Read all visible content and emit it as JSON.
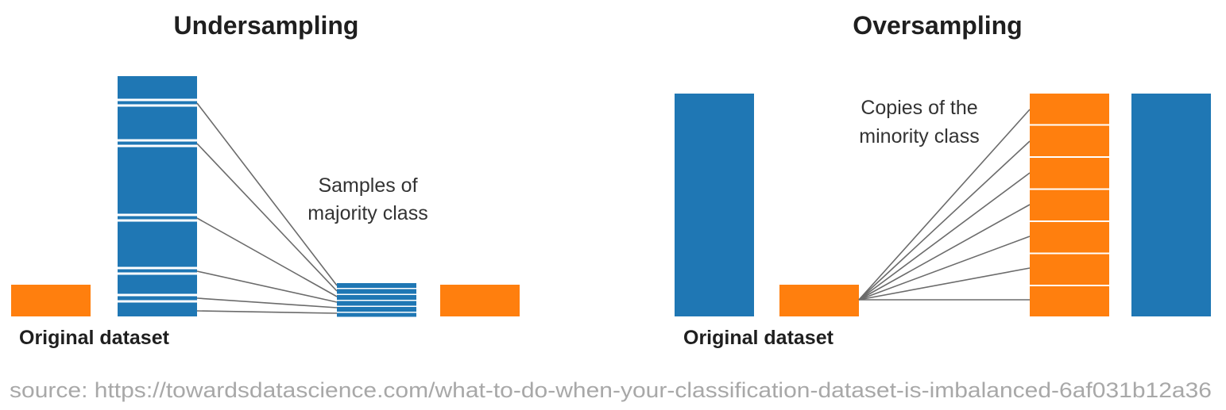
{
  "colors": {
    "majority": "#1f77b4",
    "minority": "#ff7f0e",
    "line": "#6b6b6b",
    "source_text": "#a8a8a8"
  },
  "undersampling": {
    "title": "Undersampling",
    "annotation_line1": "Samples of",
    "annotation_line2": "majority class",
    "original_label": "Original dataset",
    "sampled_count": 6
  },
  "oversampling": {
    "title": "Oversampling",
    "annotation_line1": "Copies of the",
    "annotation_line2": "minority class",
    "original_label": "Original dataset",
    "copy_count": 7
  },
  "source": "source: https://towardsdatascience.com/what-to-do-when-your-classification-dataset-is-imbalanced-6af031b12a36"
}
